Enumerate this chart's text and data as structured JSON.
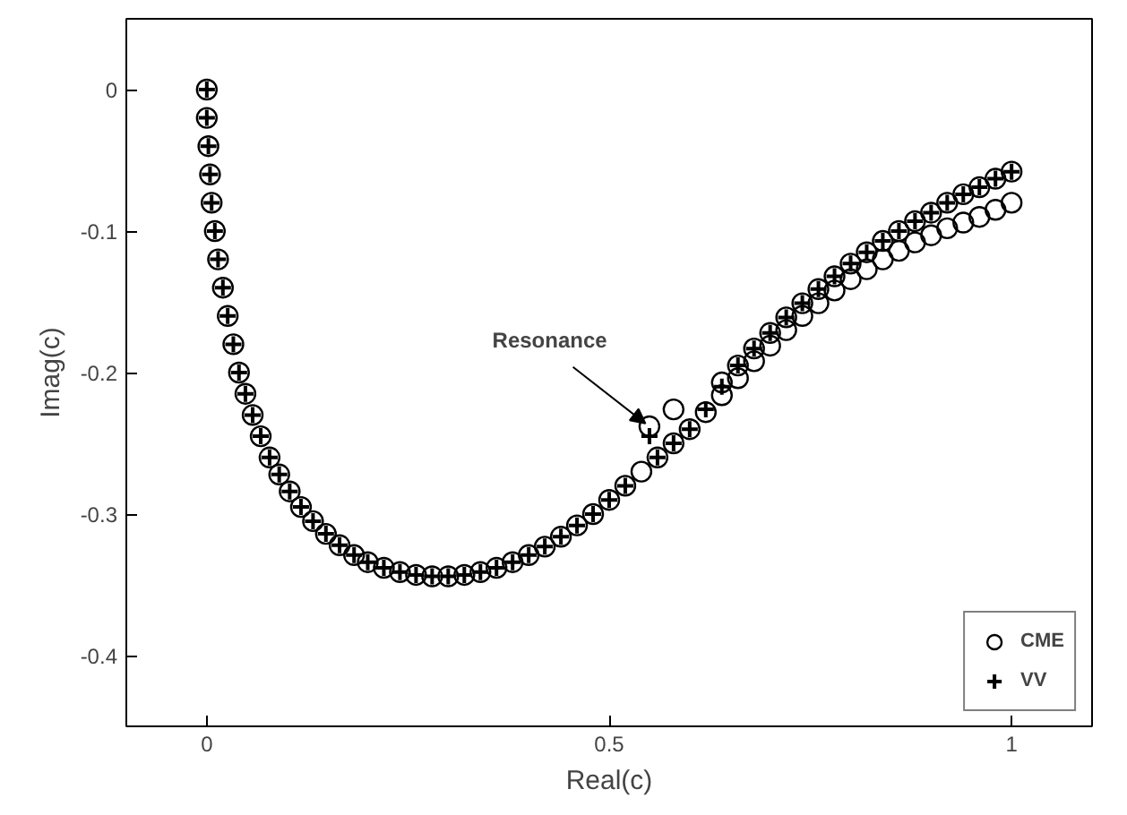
{
  "chart_data": {
    "type": "scatter",
    "xlabel": "Real(c)",
    "ylabel": "Imag(c)",
    "xlim": [
      -0.1,
      1.1
    ],
    "ylim": [
      -0.45,
      0.05
    ],
    "xticks": [
      0,
      0.5,
      1
    ],
    "yticks": [
      0,
      -0.1,
      -0.2,
      -0.3,
      -0.4
    ],
    "grid": false,
    "legend": "bottom right",
    "series": [
      {
        "name": "CME",
        "color": "#000000",
        "marker": "circle",
        "x": [
          0,
          0,
          0.002,
          0.004,
          0.006,
          0.01,
          0.014,
          0.02,
          0.026,
          0.033,
          0.04,
          0.048,
          0.057,
          0.067,
          0.078,
          0.09,
          0.103,
          0.117,
          0.132,
          0.148,
          0.165,
          0.183,
          0.2,
          0.22,
          0.24,
          0.26,
          0.28,
          0.3,
          0.32,
          0.34,
          0.36,
          0.38,
          0.4,
          0.42,
          0.44,
          0.46,
          0.48,
          0.5,
          0.52,
          0.54,
          0.56,
          0.58,
          0.6,
          0.62,
          0.64,
          0.66,
          0.68,
          0.7,
          0.72,
          0.74,
          0.76,
          0.78,
          0.8,
          0.82,
          0.84,
          0.86,
          0.88,
          0.9,
          0.92,
          0.94,
          0.96,
          0.98,
          1.0,
          0.55,
          0.58,
          0.64,
          0.66,
          0.68,
          0.7,
          0.72,
          0.74,
          0.76,
          0.78,
          0.8,
          0.82,
          0.84,
          0.86,
          0.88,
          0.9,
          0.92,
          0.94,
          0.96,
          0.98,
          1.0
        ],
        "values": [
          0,
          -0.02,
          -0.04,
          -0.06,
          -0.08,
          -0.1,
          -0.12,
          -0.14,
          -0.16,
          -0.18,
          -0.2,
          -0.215,
          -0.23,
          -0.245,
          -0.26,
          -0.272,
          -0.284,
          -0.295,
          -0.305,
          -0.314,
          -0.322,
          -0.329,
          -0.334,
          -0.338,
          -0.341,
          -0.343,
          -0.344,
          -0.344,
          -0.343,
          -0.341,
          -0.338,
          -0.334,
          -0.329,
          -0.323,
          -0.316,
          -0.308,
          -0.3,
          -0.29,
          -0.28,
          -0.27,
          -0.26,
          -0.25,
          -0.24,
          -0.228,
          -0.216,
          -0.204,
          -0.192,
          -0.181,
          -0.17,
          -0.16,
          -0.151,
          -0.142,
          -0.134,
          -0.127,
          -0.12,
          -0.114,
          -0.108,
          -0.103,
          -0.098,
          -0.094,
          -0.09,
          -0.085,
          -0.08,
          -0.238,
          -0.226,
          -0.207,
          -0.195,
          -0.183,
          -0.172,
          -0.161,
          -0.151,
          -0.141,
          -0.132,
          -0.123,
          -0.115,
          -0.107,
          -0.1,
          -0.093,
          -0.087,
          -0.08,
          -0.074,
          -0.069,
          -0.063,
          -0.058
        ]
      },
      {
        "name": "VV",
        "color": "#000000",
        "marker": "cross",
        "x": [
          0,
          0,
          0.002,
          0.004,
          0.006,
          0.01,
          0.014,
          0.02,
          0.026,
          0.033,
          0.04,
          0.048,
          0.057,
          0.067,
          0.078,
          0.09,
          0.103,
          0.117,
          0.132,
          0.148,
          0.165,
          0.183,
          0.2,
          0.22,
          0.24,
          0.26,
          0.28,
          0.3,
          0.32,
          0.34,
          0.36,
          0.38,
          0.4,
          0.42,
          0.44,
          0.46,
          0.48,
          0.5,
          0.52,
          0.55,
          0.56,
          0.58,
          0.6,
          0.62,
          0.64,
          0.66,
          0.68,
          0.7,
          0.72,
          0.74,
          0.76,
          0.78,
          0.8,
          0.82,
          0.84,
          0.86,
          0.88,
          0.9,
          0.92,
          0.94,
          0.96,
          0.98,
          1.0
        ],
        "values": [
          0,
          -0.02,
          -0.04,
          -0.06,
          -0.08,
          -0.1,
          -0.12,
          -0.14,
          -0.16,
          -0.18,
          -0.2,
          -0.215,
          -0.23,
          -0.245,
          -0.26,
          -0.272,
          -0.284,
          -0.295,
          -0.305,
          -0.314,
          -0.322,
          -0.329,
          -0.334,
          -0.338,
          -0.341,
          -0.343,
          -0.344,
          -0.344,
          -0.343,
          -0.341,
          -0.338,
          -0.334,
          -0.329,
          -0.323,
          -0.316,
          -0.308,
          -0.3,
          -0.29,
          -0.28,
          -0.245,
          -0.26,
          -0.25,
          -0.24,
          -0.226,
          -0.21,
          -0.195,
          -0.183,
          -0.172,
          -0.161,
          -0.151,
          -0.141,
          -0.132,
          -0.123,
          -0.115,
          -0.107,
          -0.1,
          -0.093,
          -0.087,
          -0.08,
          -0.074,
          -0.069,
          -0.063,
          -0.058
        ]
      }
    ],
    "annotations": [
      {
        "text": "Resonance",
        "x": 0.545,
        "y": -0.236
      }
    ]
  }
}
